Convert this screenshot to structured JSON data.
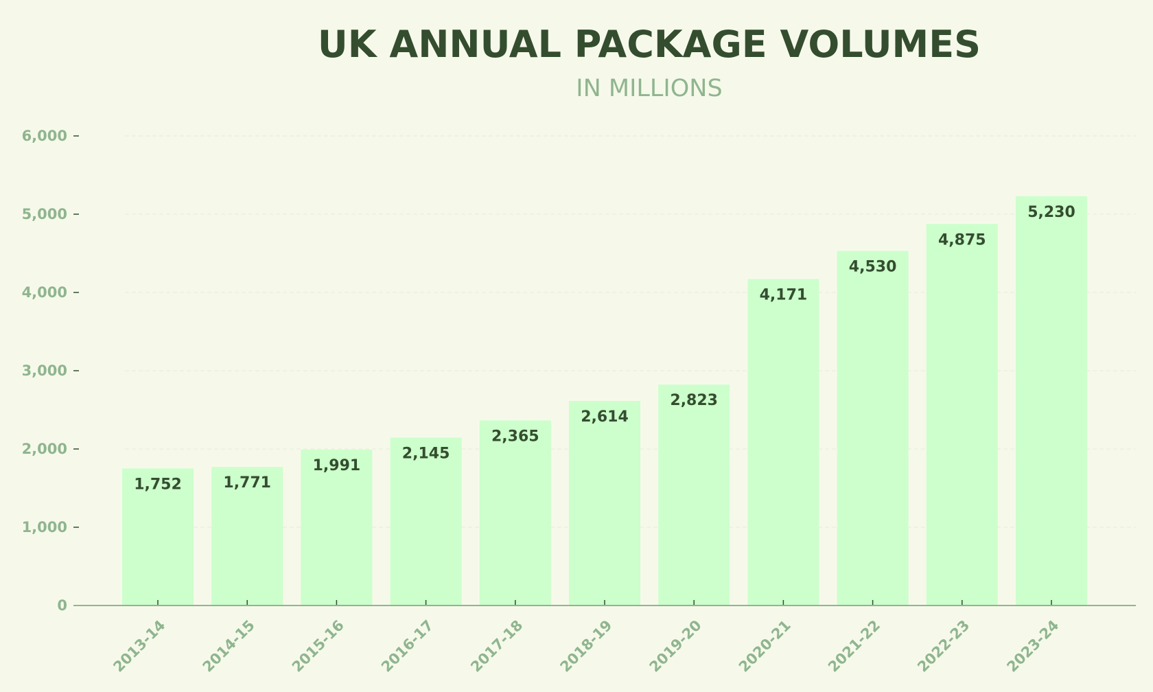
{
  "chart_data": {
    "type": "bar",
    "title": "UK ANNUAL PACKAGE VOLUMES",
    "subtitle": "IN MILLIONS",
    "xlabel": "",
    "ylabel": "",
    "categories": [
      "2013-14",
      "2014-15",
      "2015-16",
      "2016-17",
      "2017-18",
      "2018-19",
      "2019-20",
      "2020-21",
      "2021-22",
      "2022-23",
      "2023-24"
    ],
    "values": [
      1752,
      1771,
      1991,
      2145,
      2365,
      2614,
      2823,
      4171,
      4530,
      4875,
      5230
    ],
    "data_labels": [
      "1,752",
      "1,771",
      "1,991",
      "2,145",
      "2,365",
      "2,614",
      "2,823",
      "4,171",
      "4,530",
      "4,875",
      "5,230"
    ],
    "ylim": [
      0,
      6000
    ],
    "yticks": [
      0,
      1000,
      2000,
      3000,
      4000,
      5000,
      6000
    ],
    "ytick_labels": [
      "0",
      "1,000",
      "2,000",
      "3,000",
      "4,000",
      "5,000",
      "6,000"
    ],
    "grid": "horizontal dashed, faint",
    "legend": "none",
    "colors": {
      "background": "#f6f9ea",
      "bar": "#ccffcc",
      "title": "#344d2f",
      "subtitle": "#8fb58f",
      "tick_label": "#8fb58f",
      "axis": "#8fb58f",
      "data_label": "#344d2f"
    }
  }
}
